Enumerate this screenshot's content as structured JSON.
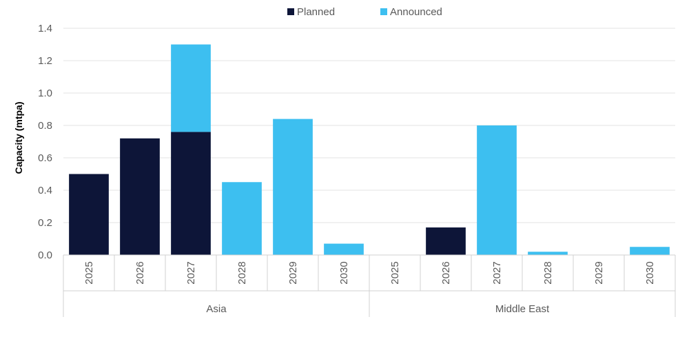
{
  "chart_data": {
    "type": "bar",
    "stacked": true,
    "ylabel": "Capacity (mtpa)",
    "xlabel": "",
    "ylim": [
      0,
      1.4
    ],
    "yticks": [
      "0.0",
      "0.2",
      "0.4",
      "0.6",
      "0.8",
      "1.0",
      "1.2",
      "1.4"
    ],
    "grid": true,
    "legend_position": "top-center",
    "groups": [
      {
        "label": "Asia",
        "categories": [
          "2025",
          "2026",
          "2027",
          "2028",
          "2029",
          "2030"
        ]
      },
      {
        "label": "Middle East",
        "categories": [
          "2025",
          "2026",
          "2027",
          "2028",
          "2029",
          "2030"
        ]
      }
    ],
    "series": [
      {
        "name": "Planned",
        "color": "#0d1538",
        "values": [
          0.5,
          0.72,
          0.76,
          0,
          0,
          0,
          0,
          0.17,
          0,
          0,
          0,
          0
        ]
      },
      {
        "name": "Announced",
        "color": "#3dbff0",
        "values": [
          0,
          0,
          0.54,
          0.45,
          0.84,
          0.07,
          0,
          0,
          0.8,
          0.02,
          0,
          0.05
        ]
      }
    ]
  }
}
